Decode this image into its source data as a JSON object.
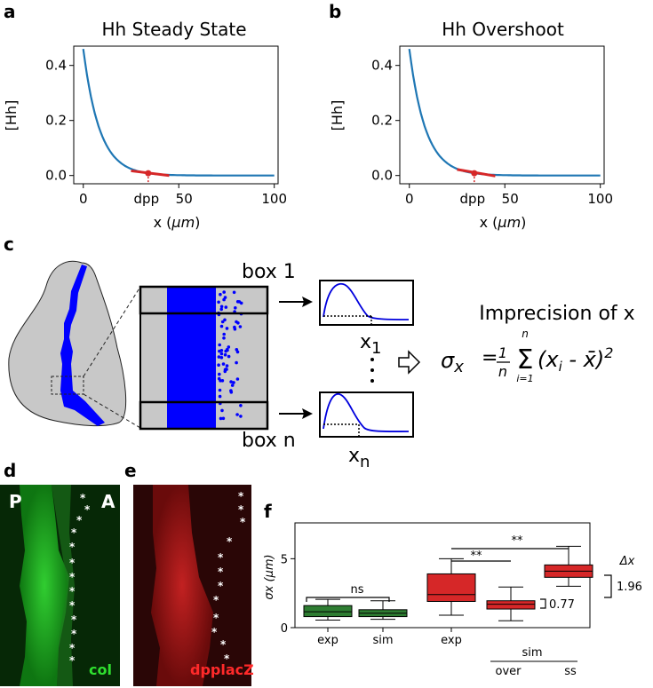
{
  "panels": {
    "a": "a",
    "b": "b",
    "c": "c",
    "d": "d",
    "e": "e",
    "f": "f"
  },
  "chart_data": [
    {
      "id": "a",
      "type": "line",
      "title": "Hh Steady State",
      "xlabel_prefix": "x (",
      "xlabel_unit": "μm",
      "xlabel_suffix": ")",
      "ylabel": "[Hh]",
      "xlim": [
        -5,
        102
      ],
      "ylim": [
        -0.03,
        0.47
      ],
      "xticks": [
        {
          "v": 0,
          "label": "0"
        },
        {
          "v": 50,
          "label": "50"
        },
        {
          "v": 100,
          "label": "100"
        }
      ],
      "xtick_dpp": {
        "v": 34,
        "label": "dpp"
      },
      "yticks": [
        {
          "v": 0.0,
          "label": "0.0"
        },
        {
          "v": 0.2,
          "label": "0.2"
        },
        {
          "v": 0.4,
          "label": "0.4"
        }
      ],
      "curve": {
        "a0": 0.46,
        "decay_length": 8.5,
        "x_range": [
          0,
          100
        ],
        "color": "#1f77b4"
      },
      "dpp_point": {
        "x": 34,
        "y": 0.0084,
        "color": "#d62728"
      },
      "threshold_segment": {
        "x_range": [
          25,
          45
        ],
        "y_range": [
          0.017,
          0.0
        ],
        "color": "#d62728"
      }
    },
    {
      "id": "b",
      "type": "line",
      "title": "Hh Overshoot",
      "xlabel_prefix": "x (",
      "xlabel_unit": "μm",
      "xlabel_suffix": ")",
      "ylabel": "[Hh]",
      "xlim": [
        -5,
        102
      ],
      "ylim": [
        -0.03,
        0.47
      ],
      "xticks": [
        {
          "v": 0,
          "label": "0"
        },
        {
          "v": 50,
          "label": "50"
        },
        {
          "v": 100,
          "label": "100"
        }
      ],
      "xtick_dpp": {
        "v": 34,
        "label": "dpp"
      },
      "yticks": [
        {
          "v": 0.0,
          "label": "0.0"
        },
        {
          "v": 0.2,
          "label": "0.2"
        },
        {
          "v": 0.4,
          "label": "0.4"
        }
      ],
      "curve": {
        "a0": 0.46,
        "decay_length": 8.5,
        "x_range": [
          0,
          100
        ],
        "color": "#1f77b4"
      },
      "dpp_point": {
        "x": 34,
        "y": 0.0084,
        "color": "#d62728"
      },
      "threshold_segment": {
        "x_range": [
          25,
          45
        ],
        "y_range": [
          0.022,
          -0.002
        ],
        "color": "#d62728"
      }
    },
    {
      "id": "f",
      "type": "box",
      "ylabel": "σx (μm)",
      "ylim": [
        0,
        7.6
      ],
      "yticks": [
        {
          "v": 0,
          "label": "0"
        },
        {
          "v": 5,
          "label": "5"
        }
      ],
      "boxes": [
        {
          "name": "col exp",
          "group": 0,
          "min": 0.55,
          "q1": 0.8,
          "median": 1.15,
          "q3": 1.6,
          "max": 2.05,
          "color": "#2e7d32"
        },
        {
          "name": "col sim",
          "group": 1,
          "min": 0.6,
          "q1": 0.8,
          "median": 1.05,
          "q3": 1.3,
          "max": 1.95,
          "color": "#2e7d32"
        },
        {
          "name": "dpp exp",
          "group": 2,
          "min": 0.9,
          "q1": 1.9,
          "median": 2.4,
          "q3": 3.9,
          "max": 5.0,
          "color": "#d62728"
        },
        {
          "name": "dpp sim over",
          "group": 3,
          "min": 0.5,
          "q1": 1.35,
          "median": 1.7,
          "q3": 1.95,
          "max": 2.95,
          "color": "#d62728"
        },
        {
          "name": "dpp sim ss",
          "group": 4,
          "min": 3.0,
          "q1": 3.65,
          "median": 4.1,
          "q3": 4.55,
          "max": 5.9,
          "color": "#d62728"
        }
      ],
      "xlabels": [
        "exp",
        "sim",
        "exp"
      ],
      "sim_label": "sim",
      "over_label": "over",
      "ss_label": "ss",
      "sig_ns": "ns",
      "sig_1": "**",
      "sig_2": "**",
      "delta_label": "Δx",
      "delta_value": "1.96",
      "delta_small": "0.77"
    }
  ],
  "schematic": {
    "box1_label": "box 1",
    "boxn_label": "box n",
    "x1_main": "x",
    "x1_sub": "1",
    "xn_main": "x",
    "xn_sub": "n",
    "imprecision_title": "Imprecision of x",
    "sigma": "σ",
    "sigma_sub": "x",
    "frac_num": "1",
    "frac_den": "n",
    "sum_top": "n",
    "sum_sym": "Σ",
    "sum_bottom": "i=1",
    "term_open": "(x",
    "term_i": "i",
    "term_mid": " - x̄)",
    "term_pow": "2",
    "dots": "⋮"
  },
  "images": {
    "d_left": "P",
    "d_right": "A",
    "d_caption": "col",
    "e_caption": "dpplacZ",
    "star": "*"
  }
}
